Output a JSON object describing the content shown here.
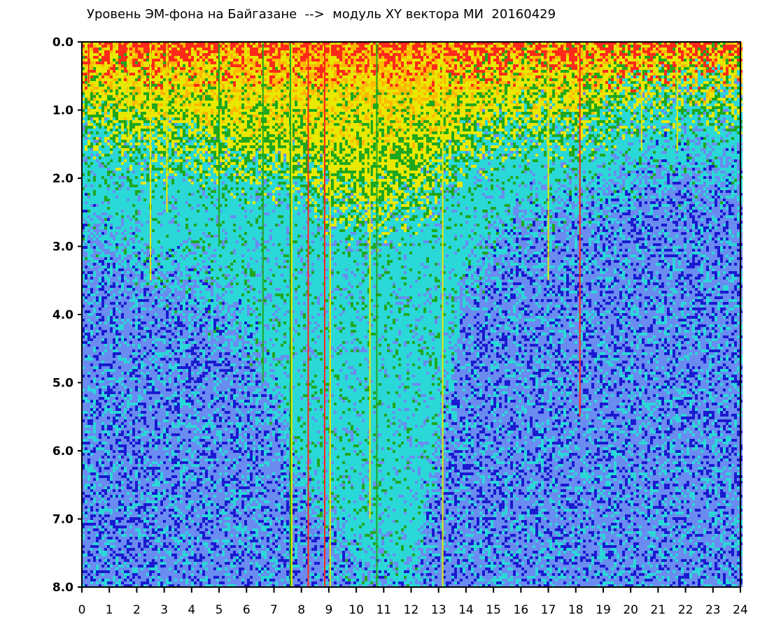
{
  "chart_data": {
    "type": "heatmap",
    "title": "Уровень ЭМ-фона на Байгазане  -->  модуль XY вектора МИ  20160429",
    "x_ticks": [
      "0",
      "1",
      "2",
      "3",
      "4",
      "5",
      "6",
      "7",
      "8",
      "9",
      "10",
      "11",
      "12",
      "13",
      "14",
      "15",
      "16",
      "17",
      "18",
      "19",
      "20",
      "21",
      "22",
      "23",
      "24"
    ],
    "y_ticks": [
      "0.0",
      "1.0",
      "2.0",
      "3.0",
      "4.0",
      "5.0",
      "6.0",
      "7.0",
      "8.0"
    ],
    "xlim": [
      0,
      24
    ],
    "ylim": [
      0,
      8
    ],
    "y_inverted": true,
    "colormap": [
      "#ff2a1a",
      "#ffb800",
      "#e8e800",
      "#1fa81f",
      "#2ad8d8",
      "#6a8cf0",
      "#1a1ad0"
    ],
    "intensity_profile": {
      "description_hours": [
        0,
        2,
        4,
        6,
        8,
        10,
        12,
        14,
        16,
        18,
        20,
        22,
        24
      ],
      "green_level_depth": [
        1.2,
        1.5,
        1.6,
        1.9,
        2.0,
        2.5,
        2.4,
        1.6,
        1.2,
        1.3,
        0.9,
        0.8,
        0.9
      ],
      "cyan_level_depth": [
        2.6,
        3.2,
        3.6,
        4.2,
        6.5,
        7.8,
        8.0,
        3.5,
        2.6,
        2.4,
        1.9,
        1.8,
        2.0
      ]
    },
    "vertical_streaks": [
      {
        "x": 0.25,
        "color": "#ff2a1a",
        "depth": 0.6
      },
      {
        "x": 1.7,
        "color": "#e8e800",
        "depth": 1.4
      },
      {
        "x": 2.5,
        "color": "#e8e800",
        "depth": 3.5
      },
      {
        "x": 3.1,
        "color": "#e8e800",
        "depth": 2.5
      },
      {
        "x": 5.0,
        "color": "#1fa81f",
        "depth": 3.0
      },
      {
        "x": 6.6,
        "color": "#1fa81f",
        "depth": 5.0
      },
      {
        "x": 7.6,
        "color": "#1fa81f",
        "depth": 8.0
      },
      {
        "x": 7.65,
        "color": "#e8e800",
        "depth": 8.0
      },
      {
        "x": 8.25,
        "color": "#ff2a1a",
        "depth": 8.0
      },
      {
        "x": 8.85,
        "color": "#ff2a1a",
        "depth": 8.0
      },
      {
        "x": 9.05,
        "color": "#e8e800",
        "depth": 8.0
      },
      {
        "x": 10.5,
        "color": "#e8e800",
        "depth": 7.0
      },
      {
        "x": 10.75,
        "color": "#1fa81f",
        "depth": 8.0
      },
      {
        "x": 13.15,
        "color": "#e8e800",
        "depth": 8.0
      },
      {
        "x": 17.0,
        "color": "#e8e800",
        "depth": 3.5
      },
      {
        "x": 18.15,
        "color": "#ff2a1a",
        "depth": 5.5
      },
      {
        "x": 20.4,
        "color": "#e8e800",
        "depth": 1.6
      },
      {
        "x": 21.7,
        "color": "#e8e800",
        "depth": 1.6
      }
    ]
  }
}
